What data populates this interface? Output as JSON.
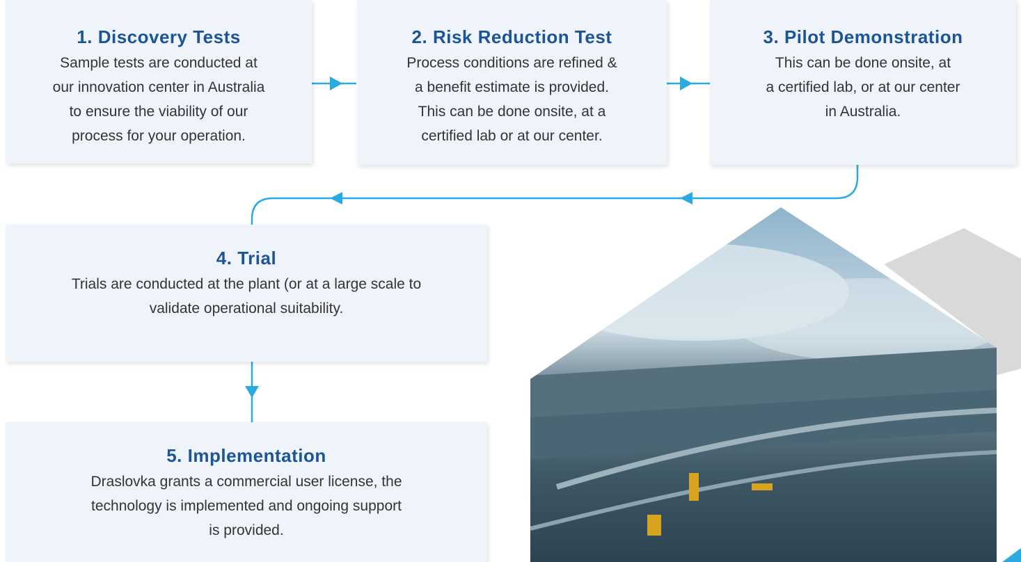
{
  "steps": [
    {
      "title": "1. Discovery Tests",
      "body_lines": [
        "Sample tests are conducted at",
        "our innovation center in Australia",
        "to ensure the viability of our",
        "process for your operation."
      ]
    },
    {
      "title": "2. Risk Reduction Test",
      "body_lines": [
        "Process conditions are refined &",
        "a benefit estimate is provided.",
        "This can be done onsite, at a",
        "certified lab or at our center."
      ]
    },
    {
      "title": "3. Pilot Demonstration",
      "body_lines": [
        "This can be done onsite, at",
        "a certified lab, or at our center",
        "in Australia."
      ]
    },
    {
      "title": "4. Trial",
      "body_lines": [
        "Trials are conducted at the plant (or at a large scale to",
        "validate operational suitability."
      ]
    },
    {
      "title": "5. Implementation",
      "body_lines": [
        "Draslovka grants a commercial user license, the",
        "technology is implemented and ongoing support",
        "is provided."
      ]
    }
  ]
}
